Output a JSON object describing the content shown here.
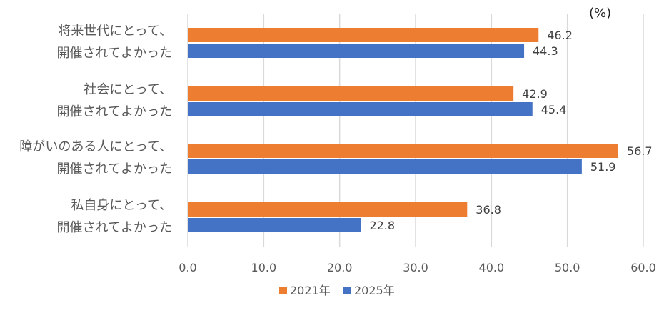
{
  "chart_data": {
    "type": "bar",
    "orientation": "horizontal",
    "unit_label": "(%)",
    "categories": [
      [
        "将来世代にとって、",
        "開催されてよかった"
      ],
      [
        "社会にとって、",
        "開催されてよかった"
      ],
      [
        "障がいのある人にとって、",
        "開催されてよかった"
      ],
      [
        "私自身にとって、",
        "開催されてよかった"
      ]
    ],
    "series": [
      {
        "name": "2021年",
        "color": "#ED7D31",
        "values": [
          46.2,
          42.9,
          56.7,
          36.8
        ]
      },
      {
        "name": "2025年",
        "color": "#4472C4",
        "values": [
          44.3,
          45.4,
          51.9,
          22.8
        ]
      }
    ],
    "data_labels": [
      [
        "46.2",
        "42.9",
        "56.7",
        "36.8"
      ],
      [
        "44.3",
        "45.4",
        "51.9",
        "22.8"
      ]
    ],
    "x_ticks": [
      "0.0",
      "10.0",
      "20.0",
      "30.0",
      "40.0",
      "50.0",
      "60.0"
    ],
    "xlim": [
      0,
      60
    ],
    "grid": true,
    "legend_position": "bottom"
  }
}
